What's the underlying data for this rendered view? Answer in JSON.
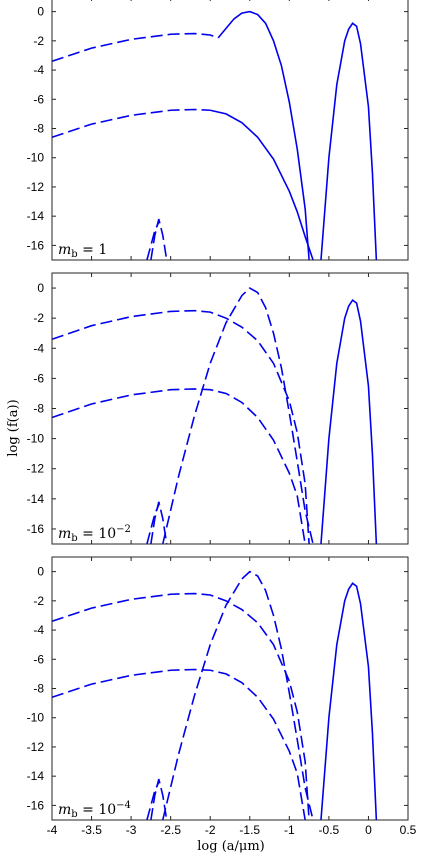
{
  "chart_data": {
    "type": "line",
    "shared_xlabel": "log (a/μm)",
    "shared_ylabel": "log (f(a))",
    "xlim": [
      -4,
      0.5
    ],
    "ylim": [
      -17,
      1
    ],
    "xticks": [
      -4,
      -3.5,
      -3,
      -2.5,
      -2,
      -1.5,
      -1,
      -0.5,
      0,
      0.5
    ],
    "yticks": [
      0,
      -2,
      -4,
      -6,
      -8,
      -10,
      -12,
      -14,
      -16
    ],
    "panels": [
      {
        "label_prefix": "m",
        "label_sub": "b",
        "label_value": " = 1",
        "series": [
          {
            "style": "dashed",
            "x": [
              -4,
              -3.5,
              -3,
              -2.5,
              -2.2,
              -2,
              -1.9
            ],
            "y": [
              -3.4,
              -2.5,
              -1.9,
              -1.55,
              -1.5,
              -1.6,
              -1.8
            ]
          },
          {
            "style": "solid",
            "x": [
              -1.9,
              -1.7,
              -1.6,
              -1.5,
              -1.4,
              -1.3,
              -1.2,
              -1.1,
              -1,
              -0.9,
              -0.8,
              -0.75
            ],
            "y": [
              -1.8,
              -0.5,
              -0.1,
              0,
              -0.2,
              -0.8,
              -2,
              -3.7,
              -6.2,
              -9.4,
              -13.5,
              -17
            ]
          },
          {
            "style": "dashed",
            "x": [
              -4,
              -3.5,
              -3,
              -2.5,
              -2.2,
              -2.0
            ],
            "y": [
              -8.6,
              -7.7,
              -7.1,
              -6.75,
              -6.7,
              -6.75
            ]
          },
          {
            "style": "solid",
            "x": [
              -2.0,
              -1.8,
              -1.6,
              -1.4,
              -1.2,
              -1.0,
              -0.9,
              -0.8,
              -0.7
            ],
            "y": [
              -6.75,
              -7.0,
              -7.6,
              -8.6,
              -10.1,
              -12.3,
              -13.7,
              -15.4,
              -17
            ]
          },
          {
            "style": "dashed",
            "x": [
              -2.75,
              -2.7,
              -2.65,
              -2.6,
              -2.55
            ],
            "y": [
              -17,
              -15.3,
              -14.2,
              -15.3,
              -17
            ]
          },
          {
            "style": "dashed",
            "x": [
              -2.8,
              -2.7,
              -2.65
            ],
            "y": [
              -17,
              -15.0,
              -14.4
            ]
          },
          {
            "style": "solid",
            "x": [
              -0.6,
              -0.5,
              -0.4,
              -0.3,
              -0.25,
              -0.2,
              -0.15,
              -0.1,
              0,
              0.05,
              0.1
            ],
            "y": [
              -17,
              -10,
              -5,
              -2,
              -1.2,
              -0.8,
              -1.0,
              -2.2,
              -6.5,
              -11,
              -17
            ]
          }
        ]
      },
      {
        "label_prefix": "m",
        "label_sub": "b",
        "label_value": " = 10",
        "label_sup": "−2",
        "series": [
          {
            "style": "dashed",
            "x": [
              -4,
              -3.5,
              -3,
              -2.5,
              -2.2,
              -2,
              -1.8,
              -1.6,
              -1.4,
              -1.2,
              -1.0,
              -0.9,
              -0.8,
              -0.75
            ],
            "y": [
              -3.4,
              -2.5,
              -1.9,
              -1.55,
              -1.5,
              -1.6,
              -2.0,
              -2.6,
              -3.5,
              -5.0,
              -7.5,
              -9.6,
              -13.0,
              -17
            ]
          },
          {
            "style": "dashed",
            "x": [
              -2.6,
              -2.4,
              -2.2,
              -2.0,
              -1.8,
              -1.6,
              -1.5,
              -1.4,
              -1.3,
              -1.2,
              -1.1,
              -1.0,
              -0.9,
              -0.8,
              -0.7
            ],
            "y": [
              -17,
              -12.5,
              -8.5,
              -5.0,
              -2.3,
              -0.5,
              0,
              -0.3,
              -1.3,
              -3.0,
              -5.3,
              -8.3,
              -11.5,
              -14.8,
              -17
            ]
          },
          {
            "style": "dashed",
            "x": [
              -4,
              -3.5,
              -3,
              -2.5,
              -2.2,
              -2.0,
              -1.8,
              -1.6,
              -1.4,
              -1.2,
              -1.0,
              -0.9,
              -0.8
            ],
            "y": [
              -8.6,
              -7.7,
              -7.1,
              -6.75,
              -6.7,
              -6.75,
              -7.0,
              -7.6,
              -8.6,
              -10.1,
              -12.3,
              -13.8,
              -17
            ]
          },
          {
            "style": "dashed",
            "x": [
              -2.75,
              -2.7,
              -2.65,
              -2.6,
              -2.55
            ],
            "y": [
              -17,
              -15.3,
              -14.2,
              -15.3,
              -17
            ]
          },
          {
            "style": "dashed",
            "x": [
              -2.8,
              -2.7,
              -2.65
            ],
            "y": [
              -17,
              -15.0,
              -14.4
            ]
          },
          {
            "style": "solid",
            "x": [
              -0.6,
              -0.5,
              -0.4,
              -0.3,
              -0.25,
              -0.2,
              -0.15,
              -0.1,
              0,
              0.05,
              0.1
            ],
            "y": [
              -17,
              -10,
              -5,
              -2,
              -1.2,
              -0.8,
              -1.0,
              -2.2,
              -6.5,
              -11,
              -17
            ]
          }
        ]
      },
      {
        "label_prefix": "m",
        "label_sub": "b",
        "label_value": " = 10",
        "label_sup": "−4",
        "series": [
          {
            "style": "dashed",
            "x": [
              -4,
              -3.5,
              -3,
              -2.5,
              -2.2,
              -2,
              -1.8,
              -1.6,
              -1.4,
              -1.2,
              -1.0,
              -0.9,
              -0.8,
              -0.75
            ],
            "y": [
              -3.4,
              -2.5,
              -1.9,
              -1.55,
              -1.5,
              -1.6,
              -2.0,
              -2.6,
              -3.5,
              -5.0,
              -7.5,
              -9.6,
              -13.0,
              -17
            ]
          },
          {
            "style": "dashed",
            "x": [
              -2.6,
              -2.4,
              -2.2,
              -2.0,
              -1.8,
              -1.6,
              -1.5,
              -1.4,
              -1.3,
              -1.2,
              -1.1,
              -1.0,
              -0.9,
              -0.8,
              -0.7
            ],
            "y": [
              -17,
              -12.5,
              -8.5,
              -5.0,
              -2.3,
              -0.5,
              0,
              -0.3,
              -1.3,
              -3.0,
              -5.3,
              -8.3,
              -11.5,
              -14.8,
              -17
            ]
          },
          {
            "style": "dashed",
            "x": [
              -4,
              -3.5,
              -3,
              -2.5,
              -2.2,
              -2.0,
              -1.8,
              -1.6,
              -1.4,
              -1.2,
              -1.0,
              -0.9,
              -0.8
            ],
            "y": [
              -8.6,
              -7.7,
              -7.1,
              -6.75,
              -6.7,
              -6.75,
              -7.0,
              -7.6,
              -8.6,
              -10.1,
              -12.3,
              -13.8,
              -17
            ]
          },
          {
            "style": "dashed",
            "x": [
              -2.75,
              -2.7,
              -2.65,
              -2.6,
              -2.55
            ],
            "y": [
              -17,
              -15.3,
              -14.2,
              -15.3,
              -17
            ]
          },
          {
            "style": "dashed",
            "x": [
              -2.8,
              -2.7,
              -2.65
            ],
            "y": [
              -17,
              -15.0,
              -14.4
            ]
          },
          {
            "style": "solid",
            "x": [
              -0.6,
              -0.5,
              -0.4,
              -0.3,
              -0.25,
              -0.2,
              -0.15,
              -0.1,
              0,
              0.05,
              0.1
            ],
            "y": [
              -17,
              -10,
              -5,
              -2,
              -1.2,
              -0.8,
              -1.0,
              -2.2,
              -6.5,
              -11,
              -17
            ]
          }
        ]
      }
    ],
    "line_color": "#0000ee",
    "grid": false
  }
}
